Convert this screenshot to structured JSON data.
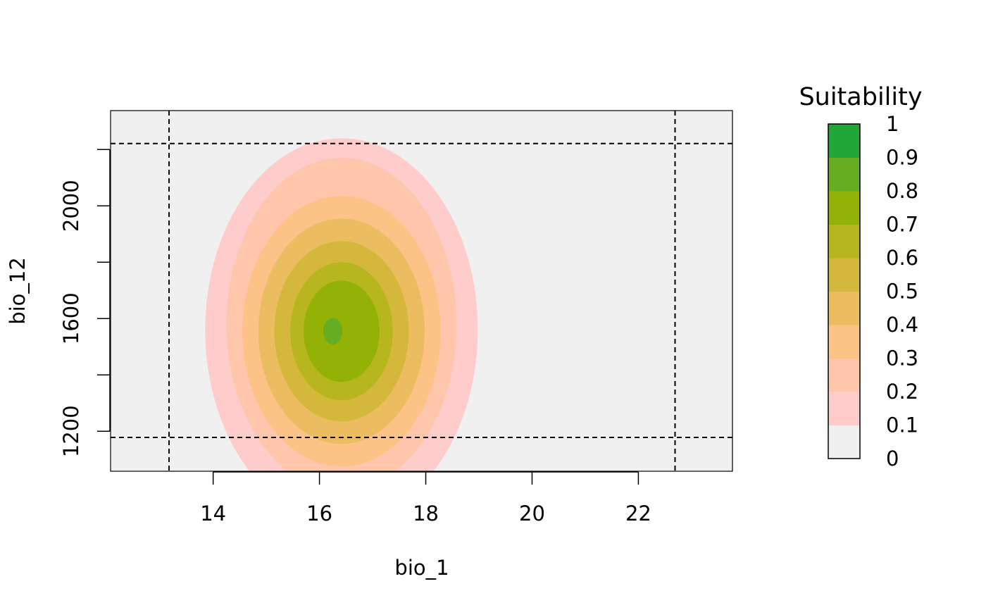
{
  "chart_data": {
    "type": "heatmap",
    "title": "",
    "xlabel": "bio_1",
    "ylabel": "bio_12",
    "xlim": [
      12.07,
      23.77
    ],
    "ylim": [
      1058,
      2338
    ],
    "x_ticks": [
      14,
      16,
      18,
      20,
      22
    ],
    "y_ticks": [
      1200,
      1400,
      1600,
      1800,
      2000,
      2200
    ],
    "y_tick_labels": [
      "1200",
      "",
      "1600",
      "",
      "2000",
      ""
    ],
    "background_color": "#f0f0f0",
    "suitability_surface": {
      "center": {
        "x": 16.25,
        "y": 1555
      },
      "contours": [
        {
          "level": 0.1,
          "x_extent": [
            13.85,
            18.98
          ],
          "y_extent": [
            880,
            2240
          ],
          "color": "#ffcccc"
        },
        {
          "level": 0.2,
          "x_extent": [
            14.25,
            18.58
          ],
          "y_extent": [
            990,
            2170
          ],
          "color": "#ffc6ab"
        },
        {
          "level": 0.3,
          "x_extent": [
            14.55,
            18.28
          ],
          "y_extent": [
            1075,
            2035
          ],
          "color": "#fcc286"
        },
        {
          "level": 0.4,
          "x_extent": [
            14.85,
            17.98
          ],
          "y_extent": [
            1155,
            1955
          ],
          "color": "#ecbd60"
        },
        {
          "level": 0.5,
          "x_extent": [
            15.15,
            17.68
          ],
          "y_extent": [
            1235,
            1875
          ],
          "color": "#d4b83b"
        },
        {
          "level": 0.6,
          "x_extent": [
            15.45,
            17.38
          ],
          "y_extent": [
            1310,
            1800
          ],
          "color": "#b8b61f"
        },
        {
          "level": 0.7,
          "x_extent": [
            15.7,
            17.13
          ],
          "y_extent": [
            1375,
            1735
          ],
          "color": "#93b205"
        },
        {
          "level": 0.8,
          "x_extent": [
            16.07,
            16.43
          ],
          "y_extent": [
            1508,
            1602
          ],
          "color": "#66ad22"
        }
      ]
    },
    "reference_lines": {
      "vertical": [
        13.17,
        22.69
      ],
      "horizontal": [
        1178,
        2221
      ],
      "style": "dashed"
    },
    "legend": {
      "title": "Suitability",
      "position": "right",
      "breaks": [
        0,
        0.1,
        0.2,
        0.3,
        0.4,
        0.5,
        0.6,
        0.7,
        0.8,
        0.9,
        1
      ],
      "break_labels": [
        "0",
        "0.1",
        "0.2",
        "0.3",
        "0.4",
        "0.5",
        "0.6",
        "0.7",
        "0.8",
        "0.9",
        "1"
      ],
      "colors": [
        "#f0f0f0",
        "#ffcccc",
        "#ffc6ab",
        "#fcc286",
        "#ecbd60",
        "#d4b83b",
        "#b8b61f",
        "#93b205",
        "#66ad22",
        "#22a638"
      ]
    }
  }
}
